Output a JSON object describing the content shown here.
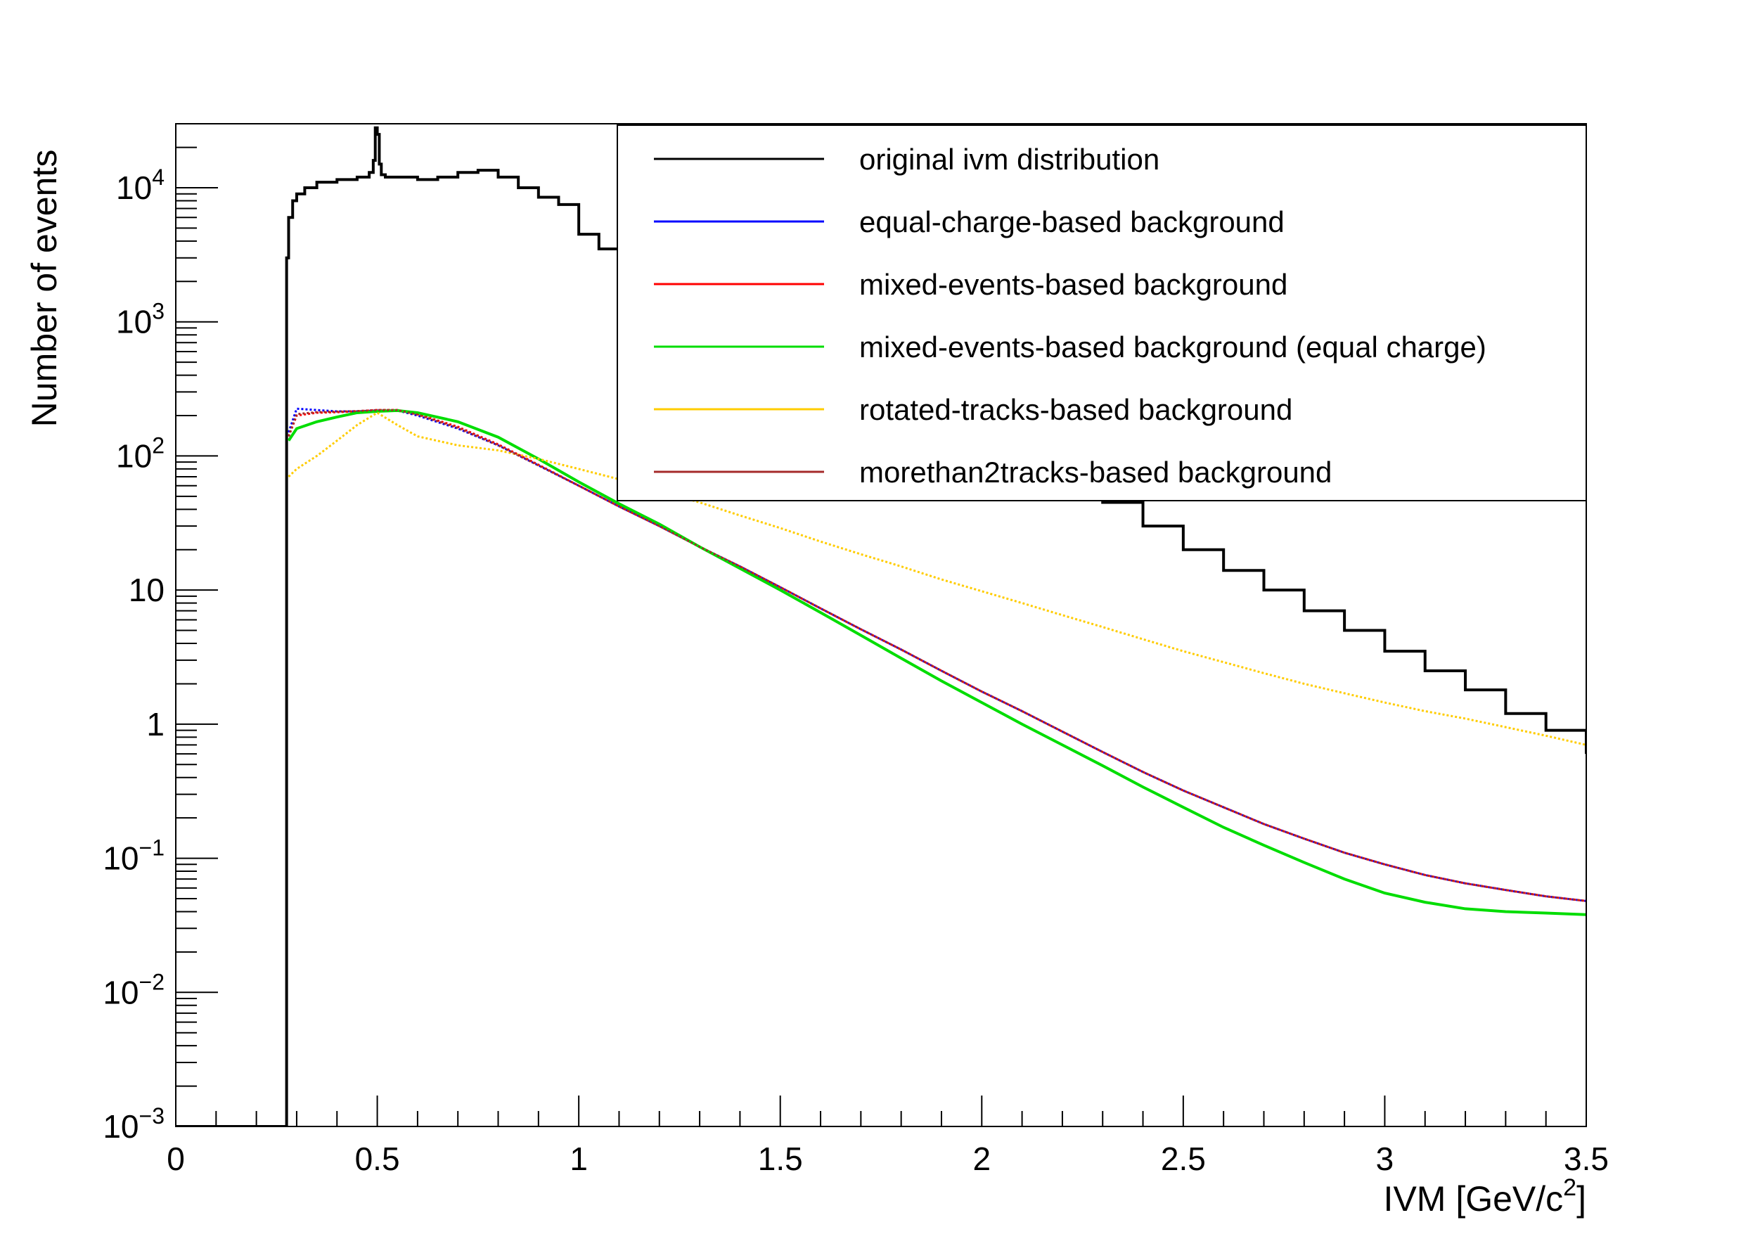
{
  "chart_data": {
    "type": "line",
    "title": "",
    "xlabel": "IVM [GeV/c",
    "xlabel_sup": "2",
    "xlabel_end": "]",
    "ylabel": "Number of events",
    "xlim": [
      0,
      3.5
    ],
    "ylim": [
      0.001,
      30000
    ],
    "yscale": "log",
    "grid": false,
    "legend_position": "top-right",
    "x_ticks": [
      {
        "value": 0,
        "label": "0"
      },
      {
        "value": 0.5,
        "label": "0.5"
      },
      {
        "value": 1,
        "label": "1"
      },
      {
        "value": 1.5,
        "label": "1.5"
      },
      {
        "value": 2,
        "label": "2"
      },
      {
        "value": 2.5,
        "label": "2.5"
      },
      {
        "value": 3,
        "label": "3"
      },
      {
        "value": 3.5,
        "label": "3.5"
      }
    ],
    "y_ticks": [
      {
        "value": 10000,
        "base": "10",
        "exp": "4"
      },
      {
        "value": 1000,
        "base": "10",
        "exp": "3"
      },
      {
        "value": 100,
        "base": "10",
        "exp": "2"
      },
      {
        "value": 10,
        "base": "10",
        "exp": ""
      },
      {
        "value": 1,
        "base": "1",
        "exp": ""
      },
      {
        "value": 0.1,
        "base": "10",
        "exp": "−1"
      },
      {
        "value": 0.01,
        "base": "10",
        "exp": "−2"
      },
      {
        "value": 0.001,
        "base": "10",
        "exp": "−3"
      }
    ],
    "series": [
      {
        "name": "original ivm distribution",
        "color": "#000000",
        "style": "step",
        "x": [
          0,
          0.27,
          0.275,
          0.28,
          0.29,
          0.3,
          0.32,
          0.35,
          0.4,
          0.45,
          0.48,
          0.49,
          0.495,
          0.5,
          0.505,
          0.51,
          0.52,
          0.55,
          0.6,
          0.65,
          0.7,
          0.75,
          0.8,
          0.85,
          0.9,
          0.95,
          1.0,
          1.05,
          1.1,
          1.15,
          1.2,
          1.3,
          1.4,
          1.5,
          1.6,
          1.7,
          1.8,
          1.9,
          2.0,
          2.1,
          2.2,
          2.3,
          2.4,
          2.5,
          2.6,
          2.7,
          2.8,
          2.9,
          3.0,
          3.1,
          3.2,
          3.3,
          3.4,
          3.5
        ],
        "y": [
          0.001,
          0.001,
          3000,
          6000,
          8000,
          9000,
          10000,
          11000,
          11500,
          12000,
          13000,
          16000,
          28000,
          25000,
          15000,
          12500,
          12000,
          12000,
          11500,
          12000,
          13000,
          13500,
          12000,
          10000,
          8500,
          7500,
          4500,
          3500,
          3000,
          2700,
          2400,
          1700,
          1200,
          850,
          600,
          430,
          300,
          210,
          150,
          100,
          68,
          45,
          30,
          20,
          14,
          10,
          7,
          5,
          3.5,
          2.5,
          1.8,
          1.2,
          0.9,
          0.6
        ]
      },
      {
        "name": "equal-charge-based background",
        "color": "#0000ff",
        "style": "points",
        "x": [
          0.28,
          0.3,
          0.35,
          0.4,
          0.45,
          0.5,
          0.55,
          0.6,
          0.7,
          0.8,
          0.9,
          1.0,
          1.1,
          1.2,
          1.3,
          1.4,
          1.5,
          1.6,
          1.7,
          1.8,
          1.9,
          2.0,
          2.1,
          2.2,
          2.3,
          2.4,
          2.5,
          2.6,
          2.7,
          2.8,
          2.9,
          3.0,
          3.1,
          3.2,
          3.3,
          3.4,
          3.5
        ],
        "y": [
          150,
          225,
          220,
          215,
          215,
          218,
          218,
          200,
          160,
          120,
          85,
          60,
          42,
          30,
          21,
          15,
          10.5,
          7.3,
          5.1,
          3.6,
          2.5,
          1.75,
          1.25,
          0.88,
          0.62,
          0.44,
          0.32,
          0.24,
          0.18,
          0.14,
          0.11,
          0.09,
          0.075,
          0.065,
          0.058,
          0.052,
          0.048
        ]
      },
      {
        "name": "mixed-events-based background",
        "color": "#ff0000",
        "style": "points",
        "x": [
          0.28,
          0.3,
          0.35,
          0.4,
          0.45,
          0.5,
          0.55,
          0.6,
          0.7,
          0.8,
          0.9,
          1.0,
          1.1,
          1.2,
          1.3,
          1.4,
          1.5,
          1.6,
          1.7,
          1.8,
          1.9,
          2.0,
          2.1,
          2.2,
          2.3,
          2.4,
          2.5,
          2.6,
          2.7,
          2.8,
          2.9,
          3.0,
          3.1,
          3.2,
          3.3,
          3.4,
          3.5
        ],
        "y": [
          140,
          200,
          210,
          212,
          215,
          220,
          220,
          205,
          165,
          122,
          86,
          60,
          42,
          30,
          21,
          15,
          10.5,
          7.3,
          5.1,
          3.6,
          2.5,
          1.75,
          1.25,
          0.88,
          0.62,
          0.44,
          0.32,
          0.24,
          0.18,
          0.14,
          0.11,
          0.09,
          0.075,
          0.065,
          0.058,
          0.052,
          0.048
        ]
      },
      {
        "name": "mixed-events-based background (equal charge)",
        "color": "#00dd00",
        "style": "line",
        "x": [
          0.28,
          0.3,
          0.35,
          0.4,
          0.45,
          0.5,
          0.55,
          0.6,
          0.7,
          0.8,
          0.9,
          1.0,
          1.1,
          1.2,
          1.3,
          1.4,
          1.5,
          1.6,
          1.7,
          1.8,
          1.9,
          2.0,
          2.1,
          2.2,
          2.3,
          2.4,
          2.5,
          2.6,
          2.7,
          2.8,
          2.9,
          3.0,
          3.1,
          3.2,
          3.3,
          3.4,
          3.5
        ],
        "y": [
          130,
          160,
          180,
          195,
          210,
          215,
          218,
          210,
          180,
          138,
          95,
          64,
          44,
          31,
          21,
          14.5,
          10,
          6.8,
          4.6,
          3.1,
          2.1,
          1.45,
          1.0,
          0.7,
          0.49,
          0.34,
          0.24,
          0.17,
          0.125,
          0.093,
          0.07,
          0.055,
          0.047,
          0.042,
          0.04,
          0.039,
          0.038
        ]
      },
      {
        "name": "rotated-tracks-based background",
        "color": "#ffcc00",
        "style": "points",
        "x": [
          0.28,
          0.3,
          0.35,
          0.4,
          0.45,
          0.5,
          0.55,
          0.6,
          0.7,
          0.8,
          0.9,
          1.0,
          1.1,
          1.2,
          1.3,
          1.4,
          1.5,
          1.6,
          1.7,
          1.8,
          1.9,
          2.0,
          2.1,
          2.2,
          2.3,
          2.4,
          2.5,
          2.6,
          2.7,
          2.8,
          2.9,
          3.0,
          3.1,
          3.2,
          3.3,
          3.4,
          3.5
        ],
        "y": [
          70,
          80,
          100,
          130,
          170,
          210,
          170,
          140,
          120,
          110,
          95,
          80,
          67,
          55,
          45,
          36,
          29,
          23,
          18.5,
          15,
          12,
          9.8,
          8,
          6.5,
          5.3,
          4.3,
          3.5,
          2.9,
          2.4,
          2.0,
          1.7,
          1.45,
          1.25,
          1.1,
          0.95,
          0.82,
          0.7
        ]
      },
      {
        "name": "morethan2tracks-based background",
        "color": "#a52a2a",
        "style": "points",
        "x": [
          0.28,
          0.3,
          0.35,
          0.4,
          0.45,
          0.5,
          0.55,
          0.6,
          0.7,
          0.8,
          0.9,
          1.0,
          1.1,
          1.2,
          1.3,
          1.4,
          1.5,
          1.6,
          1.7,
          1.8,
          1.9,
          2.0,
          2.1,
          2.2,
          2.3,
          2.4,
          2.5,
          2.6,
          2.7,
          2.8,
          2.9,
          3.0,
          3.1,
          3.2,
          3.3,
          3.4,
          3.5
        ],
        "y": [
          140,
          205,
          212,
          214,
          216,
          220,
          220,
          203,
          162,
          120,
          85,
          60,
          42,
          30,
          21,
          15,
          10.5,
          7.3,
          5.1,
          3.6,
          2.5,
          1.75,
          1.25,
          0.88,
          0.62,
          0.44,
          0.32,
          0.24,
          0.18,
          0.14,
          0.11,
          0.09,
          0.075,
          0.065,
          0.058,
          0.052,
          0.048
        ]
      }
    ]
  }
}
